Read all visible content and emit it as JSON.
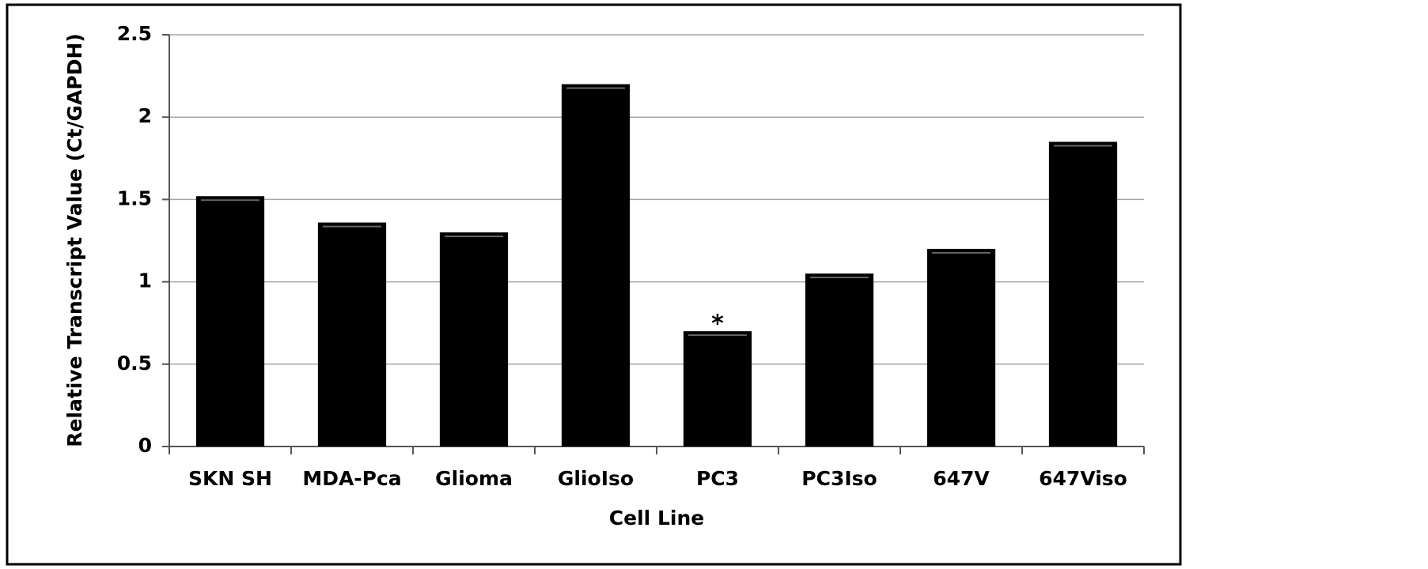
{
  "chart_data": {
    "type": "bar",
    "x_label": "Cell Line",
    "y_label": "Relative Transcript Value (Ct/GAPDH)",
    "categories": [
      "SKN SH",
      "MDA-Pca",
      "Glioma",
      "GlioIso",
      "PC3",
      "PC3Iso",
      "647V",
      "647Viso"
    ],
    "values": [
      1.52,
      1.36,
      1.3,
      2.2,
      0.7,
      1.05,
      1.2,
      1.85
    ],
    "color": "#000000",
    "ylim": [
      0,
      2.5
    ],
    "yticks": [
      0,
      0.5,
      1,
      1.5,
      2,
      2.5
    ],
    "grid": true,
    "annotations": [
      {
        "category": "PC3",
        "text": "*"
      }
    ]
  }
}
